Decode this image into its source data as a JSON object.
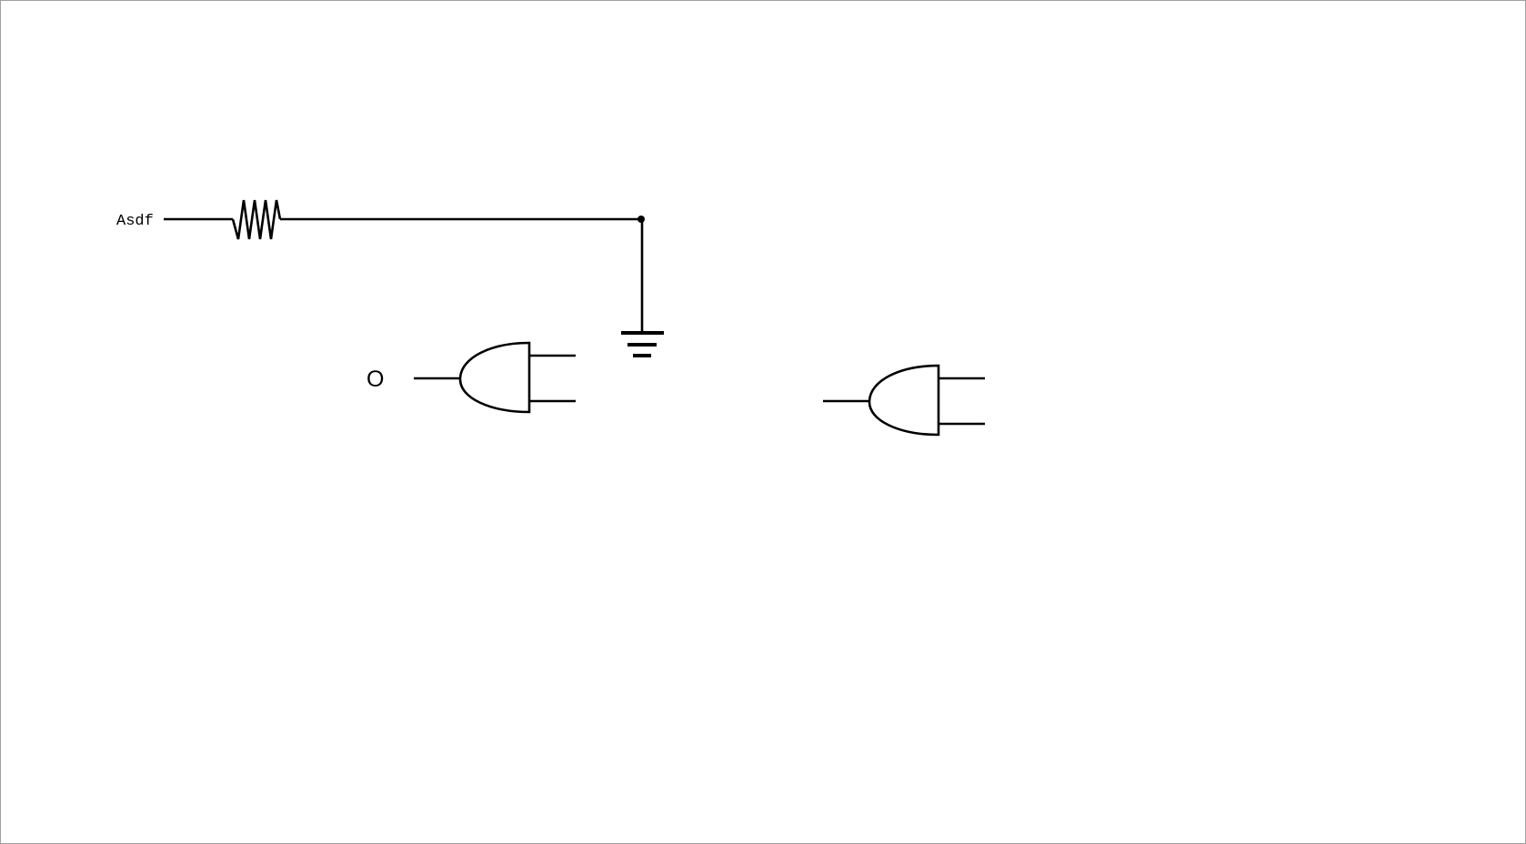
{
  "schematic": {
    "net_label": "Asdf",
    "gate_1_pin_label": "O"
  },
  "colors": {
    "background": "#ffffff",
    "frame_border": "#a0a0a0",
    "wire": "#000000"
  },
  "icons": [
    "resistor-icon",
    "ground-icon",
    "logic-gate-icon",
    "junction-dot-icon"
  ]
}
